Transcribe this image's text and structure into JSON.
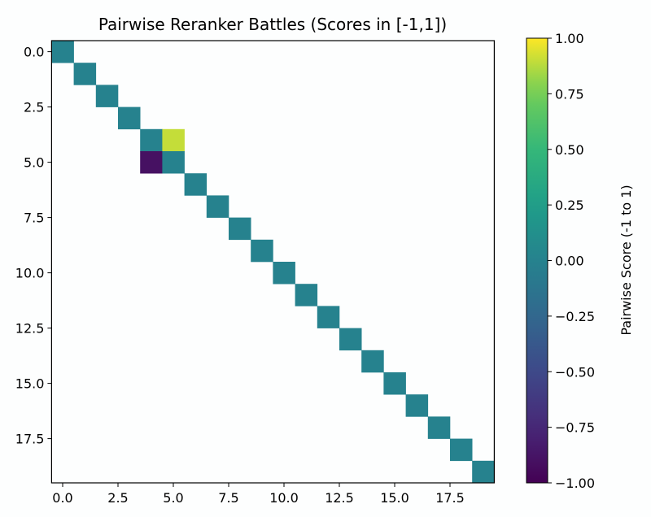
{
  "chart_data": {
    "type": "heatmap",
    "title": "Pairwise Reranker Battles (Scores in [-1,1])",
    "xlabel": "",
    "ylabel": "",
    "size": 20,
    "missing_color": "#ffffff",
    "cells": [
      {
        "row": 0,
        "col": 0,
        "value": 0
      },
      {
        "row": 1,
        "col": 1,
        "value": 0
      },
      {
        "row": 2,
        "col": 2,
        "value": 0
      },
      {
        "row": 3,
        "col": 3,
        "value": 0
      },
      {
        "row": 4,
        "col": 4,
        "value": 0
      },
      {
        "row": 4,
        "col": 5,
        "value": 0.9
      },
      {
        "row": 5,
        "col": 4,
        "value": -0.9
      },
      {
        "row": 5,
        "col": 5,
        "value": 0
      },
      {
        "row": 6,
        "col": 6,
        "value": 0
      },
      {
        "row": 7,
        "col": 7,
        "value": 0
      },
      {
        "row": 8,
        "col": 8,
        "value": 0
      },
      {
        "row": 9,
        "col": 9,
        "value": 0
      },
      {
        "row": 10,
        "col": 10,
        "value": 0
      },
      {
        "row": 11,
        "col": 11,
        "value": 0
      },
      {
        "row": 12,
        "col": 12,
        "value": 0
      },
      {
        "row": 13,
        "col": 13,
        "value": 0
      },
      {
        "row": 14,
        "col": 14,
        "value": 0
      },
      {
        "row": 15,
        "col": 15,
        "value": 0
      },
      {
        "row": 16,
        "col": 16,
        "value": 0
      },
      {
        "row": 17,
        "col": 17,
        "value": 0
      },
      {
        "row": 18,
        "col": 18,
        "value": 0
      },
      {
        "row": 19,
        "col": 19,
        "value": 0
      }
    ],
    "x_ticks": [
      "0.0",
      "2.5",
      "5.0",
      "7.5",
      "10.0",
      "12.5",
      "15.0",
      "17.5"
    ],
    "y_ticks": [
      "0.0",
      "2.5",
      "5.0",
      "7.5",
      "10.0",
      "12.5",
      "15.0",
      "17.5"
    ],
    "tick_values": [
      0,
      2.5,
      5,
      7.5,
      10,
      12.5,
      15,
      17.5
    ],
    "colormap": "viridis",
    "colorbar": {
      "label": "Pairwise Score (-1 to 1)",
      "range": [
        -1,
        1
      ],
      "tick_values": [
        1,
        0.75,
        0.5,
        0.25,
        0,
        -0.25,
        -0.5,
        -0.75,
        -1
      ],
      "tick_labels": [
        "1.00",
        "0.75",
        "0.50",
        "0.25",
        "0.00",
        "−0.25",
        "−0.50",
        "−0.75",
        "−1.00"
      ]
    }
  }
}
